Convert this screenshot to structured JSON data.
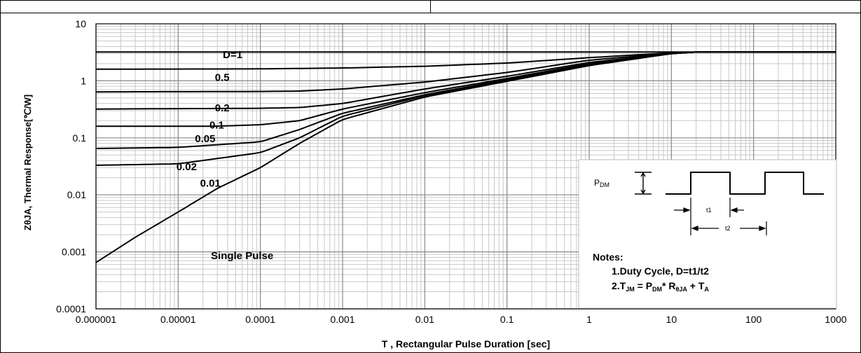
{
  "chart_data": {
    "type": "line",
    "title": "",
    "xlabel": "T , Rectangular Pulse Duration [sec]",
    "ylabel": "ZθJA, Thermal Response[℃/W]",
    "x_scale": "log",
    "y_scale": "log",
    "xlim": [
      1e-06,
      1000
    ],
    "ylim": [
      0.0001,
      10
    ],
    "grid": true,
    "x_tick_labels": [
      "0.000001",
      "0.00001",
      "0.0001",
      "0.001",
      "0.01",
      "0.1",
      "1",
      "10",
      "100",
      "1000"
    ],
    "y_tick_labels": [
      "10",
      "1",
      "0.1",
      "0.01",
      "0.001",
      "0.0001"
    ],
    "series": [
      {
        "name": "D=1",
        "x": [
          1e-06,
          1000
        ],
        "y": [
          3.2,
          3.2
        ]
      },
      {
        "name": "0.5",
        "x": [
          1e-06,
          0.0001,
          0.001,
          0.01,
          0.1,
          1,
          10,
          20,
          1000
        ],
        "y": [
          1.6,
          1.62,
          1.68,
          1.8,
          2.05,
          2.55,
          3.1,
          3.2,
          3.2
        ]
      },
      {
        "name": "0.2",
        "x": [
          1e-06,
          0.0001,
          0.0003,
          0.001,
          0.01,
          0.1,
          1,
          10,
          20,
          1000
        ],
        "y": [
          0.64,
          0.65,
          0.66,
          0.72,
          0.95,
          1.4,
          2.3,
          3.05,
          3.2,
          3.2
        ]
      },
      {
        "name": "0.1",
        "x": [
          1e-06,
          0.0001,
          0.0003,
          0.001,
          0.01,
          0.1,
          1,
          10,
          20,
          1000
        ],
        "y": [
          0.32,
          0.33,
          0.34,
          0.4,
          0.72,
          1.2,
          2.1,
          3.0,
          3.2,
          3.2
        ]
      },
      {
        "name": "0.05",
        "x": [
          1e-06,
          3e-05,
          0.0001,
          0.0003,
          0.001,
          0.01,
          0.1,
          1,
          10,
          20,
          1000
        ],
        "y": [
          0.16,
          0.16,
          0.17,
          0.2,
          0.32,
          0.62,
          1.1,
          2.0,
          3.0,
          3.2,
          3.2
        ]
      },
      {
        "name": "0.02",
        "x": [
          1e-06,
          1e-05,
          0.0001,
          0.0003,
          0.001,
          0.01,
          0.1,
          1,
          10,
          20,
          1000
        ],
        "y": [
          0.065,
          0.068,
          0.085,
          0.14,
          0.27,
          0.57,
          1.05,
          1.95,
          3.0,
          3.2,
          3.2
        ]
      },
      {
        "name": "0.01",
        "x": [
          1e-06,
          1e-05,
          0.0001,
          0.0003,
          0.001,
          0.01,
          0.1,
          1,
          10,
          20,
          1000
        ],
        "y": [
          0.033,
          0.035,
          0.055,
          0.1,
          0.24,
          0.55,
          1.0,
          1.9,
          3.0,
          3.2,
          3.2
        ]
      },
      {
        "name": "Single Pulse",
        "x": [
          1e-06,
          3e-06,
          1e-05,
          3e-05,
          0.0001,
          0.0003,
          0.001,
          0.01,
          0.1,
          1,
          10,
          20,
          1000
        ],
        "y": [
          0.00065,
          0.0018,
          0.005,
          0.013,
          0.03,
          0.08,
          0.21,
          0.52,
          0.98,
          1.85,
          3.0,
          3.2,
          3.2
        ]
      }
    ],
    "curve_labels": [
      {
        "text": "D=1",
        "x": 3.5e-05,
        "y": 2.5
      },
      {
        "text": "0.5",
        "x": 2.8e-05,
        "y": 1.0
      },
      {
        "text": "0.2",
        "x": 2.8e-05,
        "y": 0.29
      },
      {
        "text": "0.1",
        "x": 2.4e-05,
        "y": 0.145
      },
      {
        "text": "0.05",
        "x": 1.6e-05,
        "y": 0.084
      },
      {
        "text": "0.02",
        "x": 9.5e-06,
        "y": 0.027
      },
      {
        "text": "0.01",
        "x": 1.85e-05,
        "y": 0.0139
      },
      {
        "text": "Single Pulse",
        "x": 2.5e-05,
        "y": 0.00075
      }
    ],
    "inset": {
      "pdm_label": "P",
      "pdm_sub": "DM",
      "t1_label": "t1",
      "t2_label": "t2",
      "notes_title": "Notes:",
      "note1": "1.Duty  Cycle, D=t1/t2",
      "note2_parts": [
        "2.T",
        "JM",
        " = P",
        "DM",
        "* R",
        "θJA",
        " + T",
        "A"
      ]
    }
  }
}
